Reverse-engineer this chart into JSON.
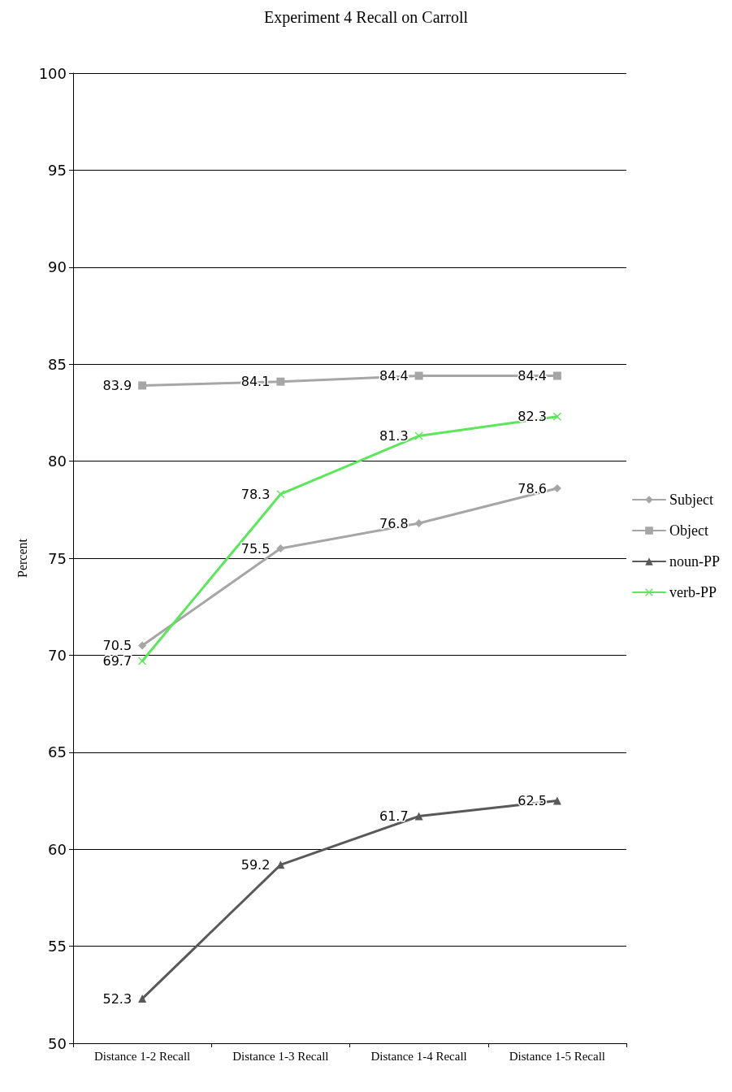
{
  "chart_data": {
    "type": "line",
    "title": "Experiment 4 Recall on Carroll",
    "ylabel": "Percent",
    "categories": [
      "Distance 1-2 Recall",
      "Distance 1-3 Recall",
      "Distance 1-4 Recall",
      "Distance 1-5 Recall"
    ],
    "series": [
      {
        "name": "Subject",
        "color": "#a6a6a6",
        "marker": "diamond",
        "values": [
          70.5,
          75.5,
          76.8,
          78.6
        ]
      },
      {
        "name": "Object",
        "color": "#a6a6a6",
        "marker": "square",
        "values": [
          83.9,
          84.1,
          84.4,
          84.4
        ]
      },
      {
        "name": "noun-PP",
        "color": "#595959",
        "marker": "triangle",
        "values": [
          52.3,
          59.2,
          61.7,
          62.5
        ]
      },
      {
        "name": "verb-PP",
        "color": "#5ce65c",
        "marker": "cross",
        "values": [
          69.7,
          78.3,
          81.3,
          82.3
        ]
      }
    ],
    "ylim": [
      50,
      100
    ],
    "yticks": [
      50,
      55,
      60,
      65,
      70,
      75,
      80,
      85,
      90,
      95,
      100
    ],
    "grid": "y",
    "legend": "right",
    "data_labels": true
  }
}
